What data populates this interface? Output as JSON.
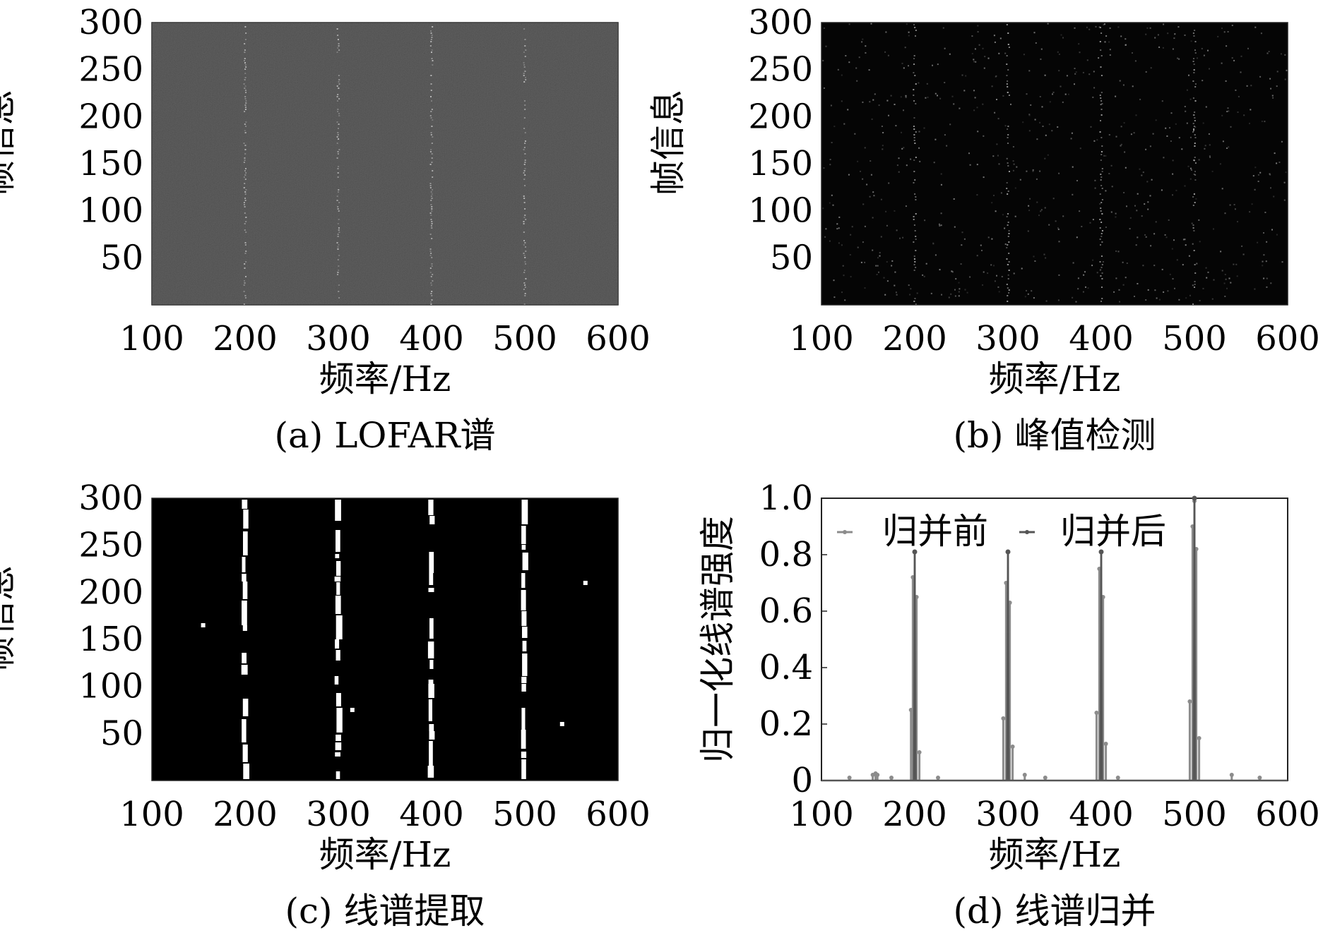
{
  "chart_data": [
    {
      "type": "heatmap",
      "caption": "(a) LOFAR谱",
      "xlabel": "频率/Hz",
      "ylabel": "帧信息",
      "xlim": [
        100,
        600
      ],
      "ylim": [
        0,
        300
      ],
      "xticks": [
        100,
        200,
        300,
        400,
        500,
        600
      ],
      "yticks": [
        50,
        100,
        150,
        200,
        250,
        300
      ],
      "line_frequencies": [
        200,
        300,
        400,
        500
      ],
      "background": "#3c3c3c",
      "noise": "gray speckle",
      "line_color": "#cfcfcf"
    },
    {
      "type": "heatmap",
      "caption": "(b) 峰值检测",
      "xlabel": "频率/Hz",
      "ylabel": "帧信息",
      "xlim": [
        100,
        600
      ],
      "ylim": [
        0,
        300
      ],
      "xticks": [
        100,
        200,
        300,
        400,
        500,
        600
      ],
      "yticks": [
        50,
        100,
        150,
        200,
        250,
        300
      ],
      "line_frequencies": [
        200,
        300,
        400,
        500
      ],
      "background": "#050505",
      "noise": "sparse dots",
      "line_color": "#bdbdbd"
    },
    {
      "type": "heatmap",
      "caption": "(c) 线谱提取",
      "xlabel": "频率/Hz",
      "ylabel": "帧信息",
      "xlim": [
        100,
        600
      ],
      "ylim": [
        0,
        300
      ],
      "xticks": [
        100,
        200,
        300,
        400,
        500,
        600
      ],
      "yticks": [
        50,
        100,
        150,
        200,
        250,
        300
      ],
      "line_frequencies": [
        200,
        300,
        400,
        500
      ],
      "isolated_points": [
        [
          155,
          165
        ],
        [
          315,
          75
        ],
        [
          540,
          60
        ],
        [
          565,
          210
        ]
      ],
      "background": "#000000",
      "line_color": "#ffffff"
    },
    {
      "type": "line",
      "caption": "(d) 线谱归并",
      "xlabel": "频率/Hz",
      "ylabel": "归一化线谱强度",
      "xlim": [
        100,
        600
      ],
      "ylim": [
        0,
        1.0
      ],
      "xticks": [
        100,
        200,
        300,
        400,
        500,
        600
      ],
      "yticks": [
        0,
        0.2,
        0.4,
        0.6,
        0.8,
        1.0
      ],
      "ytick_labels": [
        "0",
        "0.2",
        "0.4",
        "0.6",
        "0.8",
        "1.0"
      ],
      "legend_position": "top-left",
      "series": [
        {
          "name": "归并前",
          "color": "#8c8c8c",
          "x": [
            130,
            155,
            158,
            160,
            175,
            196,
            198,
            200,
            202,
            205,
            225,
            295,
            298,
            300,
            302,
            305,
            318,
            340,
            395,
            398,
            400,
            402,
            405,
            418,
            495,
            498,
            500,
            502,
            505,
            540,
            570
          ],
          "y": [
            0.01,
            0.02,
            0.025,
            0.02,
            0.01,
            0.25,
            0.72,
            0.81,
            0.65,
            0.1,
            0.01,
            0.22,
            0.7,
            0.81,
            0.63,
            0.12,
            0.02,
            0.01,
            0.24,
            0.75,
            0.81,
            0.65,
            0.13,
            0.01,
            0.28,
            0.9,
            0.99,
            0.82,
            0.15,
            0.02,
            0.01
          ]
        },
        {
          "name": "归并后",
          "color": "#555555",
          "x": [
            100,
            199,
            200,
            201,
            299,
            300,
            301,
            399,
            400,
            401,
            499,
            500,
            501,
            600
          ],
          "y": [
            0,
            0,
            0.81,
            0,
            0,
            0.81,
            0,
            0,
            0.81,
            0,
            0,
            1.0,
            0,
            0
          ]
        }
      ]
    }
  ]
}
